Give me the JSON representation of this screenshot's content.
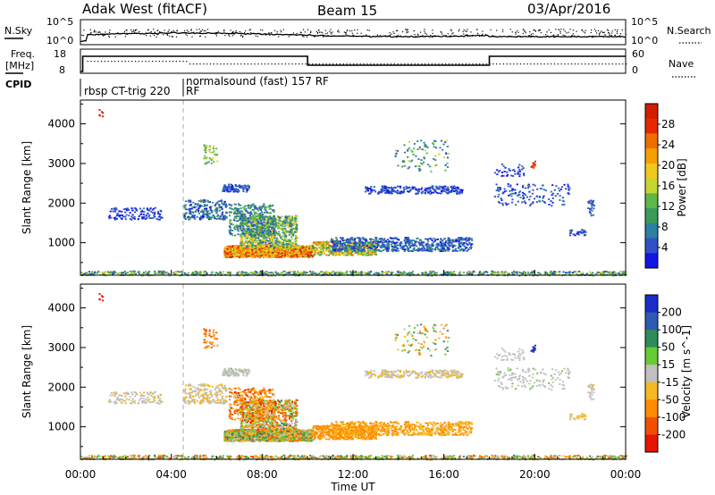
{
  "header": {
    "station": "Adak West (fitACF)",
    "beam": "Beam 15",
    "date": "03/Apr/2016"
  },
  "noise_panel": {
    "left_label": "N.Sky",
    "right_label": "N.Search",
    "left_ticks": [
      "10^5",
      "10^0"
    ],
    "right_ticks": [
      "10^5",
      "10^0"
    ]
  },
  "freq_panel": {
    "left_label_top": "Freq.",
    "left_label_bottom": "[MHz]",
    "left_ticks": [
      "18",
      "8"
    ],
    "right_label": "Nave",
    "right_ticks": [
      "60",
      "0"
    ]
  },
  "cpid": {
    "label": "CPID",
    "modes": [
      {
        "start_hour": 0.0,
        "text_lines": [
          "rbsp CT-trig 220"
        ]
      },
      {
        "start_hour": 4.8,
        "text_lines": [
          "normalsound (fast) 157 RF",
          "RF"
        ]
      }
    ]
  },
  "chart_data": [
    {
      "type": "heatmap",
      "name": "Power",
      "ylabel": "Slant Range [km]",
      "ylim": [
        180,
        4600
      ],
      "yticks": [
        1000,
        2000,
        3000,
        4000
      ],
      "xlim": [
        0,
        24
      ],
      "colorbar": {
        "label": "Power [dB]",
        "range": [
          0,
          32
        ],
        "ticks": [
          "4",
          "8",
          "12",
          "16",
          "20",
          "24",
          "28"
        ],
        "colors": [
          "#1414e6",
          "#3050c8",
          "#2e7fa0",
          "#3c9a5a",
          "#5cb848",
          "#c8d430",
          "#f2c820",
          "#f5a000",
          "#ee6e00",
          "#e62800",
          "#d21e00"
        ]
      }
    },
    {
      "type": "heatmap",
      "name": "Velocity",
      "ylabel": "Slant Range [km]",
      "ylim": [
        180,
        4600
      ],
      "yticks": [
        1000,
        2000,
        3000,
        4000
      ],
      "xlim": [
        0,
        24
      ],
      "xlabel": "Time UT",
      "xticks": [
        "00:00",
        "04:00",
        "08:00",
        "12:00",
        "16:00",
        "20:00",
        "00:00"
      ],
      "colorbar": {
        "label": "Velocity [m s^-1]",
        "ticks": [
          "200",
          "100",
          "50",
          "15",
          "-15",
          "-50",
          "-100",
          "-200"
        ],
        "colors": [
          "#1a2cc8",
          "#2e5ab4",
          "#2e8c5a",
          "#66cc33",
          "#c0c0c0",
          "#f5b820",
          "#ff8c00",
          "#f05000",
          "#e61400"
        ]
      }
    }
  ]
}
